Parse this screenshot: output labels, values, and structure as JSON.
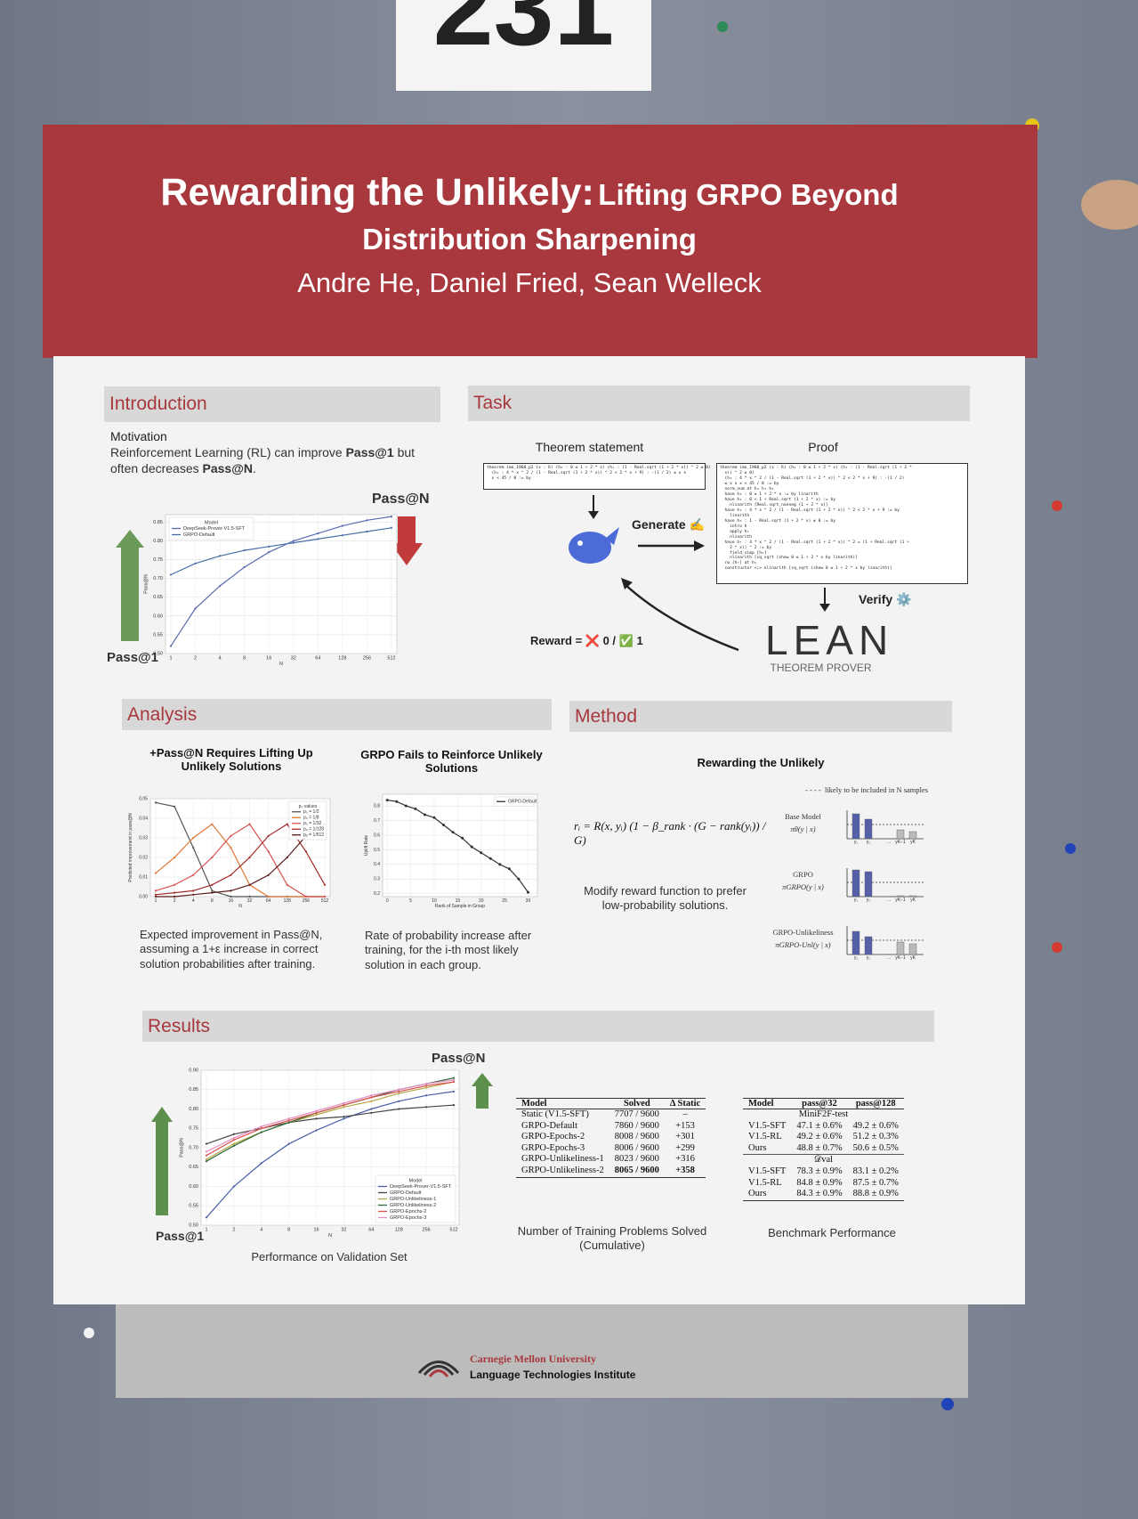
{
  "booth_number": "231",
  "header": {
    "title_main": "Rewarding the Unlikely:",
    "title_rest": "Lifting GRPO Beyond",
    "title_line2": "Distribution Sharpening",
    "authors": "Andre He, Daniel Fried, Sean Welleck"
  },
  "introduction": {
    "heading": "Introduction",
    "subheading": "Motivation",
    "motivation": [
      "Reinforcement Learning (RL) can improve ",
      "Pass@1",
      " but often decreases ",
      "Pass@N",
      "."
    ],
    "annotation_top": "Pass@N",
    "annotation_bottom": "Pass@1",
    "chart_data": {
      "type": "line",
      "ylabel": "Pass@N",
      "xlabel": "N",
      "legend_title": "Model",
      "legend": "upper left",
      "grid": true,
      "categories": [
        "1",
        "2",
        "4",
        "8",
        "16",
        "32",
        "64",
        "128",
        "256",
        "512"
      ],
      "ylim": [
        0.5,
        0.87
      ],
      "yticks": [
        {
          "value": 0.5,
          "label": "0.50"
        },
        0.55,
        {
          "value": 0.6,
          "label": "0.60"
        },
        0.65,
        {
          "value": 0.7,
          "label": "0.70"
        },
        0.75,
        {
          "value": 0.8,
          "label": "0.80"
        },
        0.85
      ],
      "series": [
        {
          "name": "DeepSeek-Prover-V1.5-SFT",
          "color": "#5b6bb0",
          "values": [
            0.52,
            0.62,
            0.68,
            0.73,
            0.77,
            0.8,
            0.82,
            0.84,
            0.855,
            0.865
          ]
        },
        {
          "name": "GRPO-Default",
          "color": "#4a6fa8",
          "values": [
            0.71,
            0.74,
            0.76,
            0.775,
            0.785,
            0.795,
            0.805,
            0.815,
            0.825,
            0.835
          ]
        }
      ]
    }
  },
  "task": {
    "heading": "Task",
    "theorem_label": "Theorem statement",
    "proof_label": "Proof",
    "theorem_code": [
      "theorem imo_1960_p2 (x : ℝ) (h₀ : 0 ≤ 1 + 2 * x) (h₁ : (1 - Real.sqrt (1 + 2 * x)) ^ 2 ≠ 0)",
      "  (h₂ : 4 * x ^ 2 / (1 - Real.sqrt (1 + 2 * x)) ^ 2 < 2 * x + 9) : -(1 / 2) ≤ x ∧",
      "  x < 45 / 8 := by"
    ],
    "proof_code": [
      "theorem imo_1960_p2 (x : ℝ) (h₀ : 0 ≤ 1 + 2 * x) (h₁ : (1 - Real.sqrt (1 + 2 *",
      "  x)) ^ 2 ≠ 0)",
      "  (h₂ : 4 * x ^ 2 / (1 - Real.sqrt (1 + 2 * x)) ^ 2 < 2 * x + 9) : -(1 / 2)",
      "  ≤ x ∧ x < 45 / 8 := by",
      "  norm_num at h₀ h₁ h₂",
      "  have h₃ : 0 ≤ 1 + 2 * x := by linarith",
      "  have h₄ : 0 < 1 + Real.sqrt (1 + 2 * x) := by",
      "    nlinarith [Real.sqrt_nonneg (1 + 2 * x)]",
      "  have h₅ : 4 * x ^ 2 / (1 - Real.sqrt (1 + 2 * x)) ^ 2 < 2 * x + 9 := by",
      "    linarith",
      "  have h₆ : 1 - Real.sqrt (1 + 2 * x) ≠ 0 := by",
      "    intro h",
      "    apply h₁",
      "    nlinarith",
      "  have h₇ : 4 * x ^ 2 / (1 - Real.sqrt (1 + 2 * x)) ^ 2 = (1 + Real.sqrt (1 +",
      "    2 * x)) ^ 2 := by",
      "    field_simp [h₆]",
      "    nlinarith [sq_sqrt (show 0 ≤ 1 + 2 * x by linarith)]",
      "  rw [h₇] at h₅",
      "  constructor <;> nlinarith [sq_sqrt (show 0 ≤ 1 + 2 * x by linarith)]"
    ],
    "generate": "Generate ✍️",
    "verify": "Verify ⚙️",
    "reward_prefix": "Reward = ",
    "reward_cross": "❌",
    "reward_zero": " 0 / ",
    "reward_check": "✅",
    "reward_one": " 1",
    "lean_logo": "LEAN",
    "lean_sub": "THEOREM PROVER"
  },
  "analysis": {
    "heading": "Analysis",
    "left_title": "+Pass@N Requires Lifting Up Unlikely Solutions",
    "left_caption": "Expected improvement in Pass@N, assuming a 1+ε increase in correct solution probabilities after training.",
    "right_title": "GRPO Fails to Reinforce Unlikely Solutions",
    "right_caption": "Rate of probability increase after training, for the i-th most likely solution in each group.",
    "left_chart": {
      "type": "line",
      "ylabel": "Predicted improvement in pass@N",
      "xlabel": "N",
      "legend_title": "p₀ values",
      "legend": "upper right",
      "grid": true,
      "categories": [
        "1",
        "2",
        "4",
        "8",
        "16",
        "32",
        "64",
        "128",
        "256",
        "512"
      ],
      "ylim": [
        0,
        0.05
      ],
      "yticks": [
        {
          "value": 0,
          "label": "0.00"
        },
        0.01,
        0.02,
        0.03,
        0.04,
        0.05
      ],
      "series": [
        {
          "name": "p₀ = 1/2",
          "color": "#555555",
          "values": [
            0.048,
            0.046,
            0.025,
            0.003,
            0,
            0,
            0,
            0,
            0,
            0
          ]
        },
        {
          "name": "p₀ = 1/8",
          "color": "#e07b39",
          "values": [
            0.012,
            0.02,
            0.03,
            0.037,
            0.025,
            0.006,
            0,
            0,
            0,
            0
          ]
        },
        {
          "name": "p₀ = 1/32",
          "color": "#d9534f",
          "values": [
            0.003,
            0.006,
            0.011,
            0.02,
            0.031,
            0.037,
            0.023,
            0.006,
            0,
            0
          ]
        },
        {
          "name": "p₀ = 1/128",
          "color": "#a52a2a",
          "values": [
            0.001,
            0.002,
            0.003,
            0.006,
            0.011,
            0.02,
            0.031,
            0.037,
            0.023,
            0.006
          ]
        },
        {
          "name": "p₀ = 1/512",
          "color": "#5c1a1a",
          "values": [
            0,
            0,
            0.001,
            0.002,
            0.003,
            0.006,
            0.011,
            0.02,
            0.031,
            0.037
          ]
        }
      ]
    },
    "right_chart": {
      "type": "line",
      "ylabel": "Uplift Rate",
      "xlabel": "Rank of Sample in Group",
      "legend": "upper right",
      "grid": true,
      "markers": true,
      "x": [
        0,
        2,
        4,
        6,
        8,
        10,
        12,
        14,
        16,
        18,
        20,
        22,
        24,
        26,
        28,
        30
      ],
      "xlim": [
        -1,
        32
      ],
      "xticks": [
        0,
        5,
        10,
        15,
        20,
        25,
        30
      ],
      "ylim": [
        0.18,
        0.88
      ],
      "yticks": [
        0.2,
        0.3,
        0.4,
        0.5,
        0.6,
        0.7,
        0.8
      ],
      "series": [
        {
          "name": "GRPO-Default",
          "color": "#333333",
          "values": [
            0.84,
            0.83,
            0.8,
            0.78,
            0.74,
            0.72,
            0.67,
            0.62,
            0.58,
            0.52,
            0.48,
            0.44,
            0.4,
            0.37,
            0.3,
            0.21
          ]
        }
      ]
    }
  },
  "method": {
    "heading": "Method",
    "title": "Rewarding the Unlikely",
    "formula": "rᵢ = R(x, yᵢ) (1 − β_rank · (G − rank(yᵢ)) / G)",
    "caption": "Modify reward function to prefer low-probability solutions.",
    "legend_note": "likely to be included in N samples",
    "panels": [
      {
        "name": "Base Model",
        "dist": "πθ(y | x)"
      },
      {
        "name": "GRPO",
        "dist": "πGRPO(y | x)"
      },
      {
        "name": "GRPO-Unlikeliness",
        "dist": "πGRPO-Unl(y | x)"
      }
    ],
    "bar_labels": [
      "y₁",
      "y₂",
      "…",
      "yK−1",
      "yK"
    ]
  },
  "results": {
    "heading": "Results",
    "annotation_top": "Pass@N",
    "annotation_bottom": "Pass@1",
    "chart_caption": "Performance on Validation Set",
    "chart_data": {
      "type": "line",
      "ylabel": "Pass@N",
      "xlabel": "N",
      "legend_title": "Model",
      "legend": "lower right",
      "grid": true,
      "categories": [
        "1",
        "2",
        "4",
        "8",
        "16",
        "32",
        "64",
        "128",
        "256",
        "512"
      ],
      "ylim": [
        0.5,
        0.9
      ],
      "yticks": [
        {
          "value": 0.5,
          "label": "0.50"
        },
        0.55,
        {
          "value": 0.6,
          "label": "0.60"
        },
        0.65,
        {
          "value": 0.7,
          "label": "0.70"
        },
        0.75,
        {
          "value": 0.8,
          "label": "0.80"
        },
        0.85,
        {
          "value": 0.9,
          "label": "0.90"
        }
      ],
      "series": [
        {
          "name": "DeepSeek-Prover-V1.5-SFT",
          "color": "#4a5fa8",
          "values": [
            0.52,
            0.6,
            0.66,
            0.71,
            0.745,
            0.775,
            0.8,
            0.82,
            0.835,
            0.845
          ]
        },
        {
          "name": "GRPO-Default",
          "color": "#444444",
          "values": [
            0.71,
            0.735,
            0.75,
            0.765,
            0.775,
            0.78,
            0.79,
            0.8,
            0.805,
            0.81
          ]
        },
        {
          "name": "GRPO-Unlikeliness-1",
          "color": "#b5a642",
          "values": [
            0.67,
            0.71,
            0.74,
            0.765,
            0.785,
            0.805,
            0.82,
            0.84,
            0.855,
            0.87
          ]
        },
        {
          "name": "GRPO-Unlikeliness-2",
          "color": "#2e6b3a",
          "values": [
            0.665,
            0.705,
            0.74,
            0.765,
            0.79,
            0.81,
            0.83,
            0.85,
            0.865,
            0.88
          ]
        },
        {
          "name": "GRPO-Epochs-2",
          "color": "#d9534f",
          "values": [
            0.68,
            0.72,
            0.75,
            0.77,
            0.79,
            0.81,
            0.83,
            0.845,
            0.86,
            0.87
          ]
        },
        {
          "name": "GRPO-Epochs-3",
          "color": "#e38ac0",
          "values": [
            0.69,
            0.725,
            0.755,
            0.775,
            0.795,
            0.815,
            0.835,
            0.85,
            0.865,
            0.875
          ]
        }
      ]
    },
    "training_table": {
      "header": [
        "Model",
        "Solved",
        "Δ Static"
      ],
      "rows": [
        [
          "Static (V1.5-SFT)",
          "7707 / 9600",
          "–"
        ],
        [
          "GRPO-Default",
          "7860 / 9600",
          "+153"
        ],
        [
          "GRPO-Epochs-2",
          "8008 / 9600",
          "+301"
        ],
        [
          "GRPO-Epochs-3",
          "8006 / 9600",
          "+299"
        ],
        [
          "GRPO-Unlikeliness-1",
          "8023 / 9600",
          "+316"
        ],
        [
          "GRPO-Unlikeliness-2",
          "8065 / 9600",
          "+358"
        ]
      ],
      "caption": "Number of Training Problems Solved (Cumulative)"
    },
    "benchmark_table": {
      "header": [
        "Model",
        "pass@32",
        "pass@128"
      ],
      "groups": [
        {
          "name": "MiniF2F-test",
          "rows": [
            [
              "V1.5-SFT",
              "47.1 ± 0.6%",
              "49.2 ± 0.6%"
            ],
            [
              "V1.5-RL",
              "49.2 ± 0.6%",
              "51.2 ± 0.3%"
            ],
            [
              "Ours",
              "48.8 ± 0.7%",
              "50.6 ± 0.5%"
            ]
          ]
        },
        {
          "name": "𝒟val",
          "rows": [
            [
              "V1.5-SFT",
              "78.3 ± 0.9%",
              "83.1 ± 0.2%"
            ],
            [
              "V1.5-RL",
              "84.8 ± 0.9%",
              "87.5 ± 0.7%"
            ],
            [
              "Ours",
              "84.3 ± 0.9%",
              "88.8 ± 0.9%"
            ]
          ]
        }
      ],
      "caption": "Benchmark Performance"
    }
  },
  "footer": {
    "university": "Carnegie Mellon University",
    "institute": "Language Technologies Institute"
  }
}
